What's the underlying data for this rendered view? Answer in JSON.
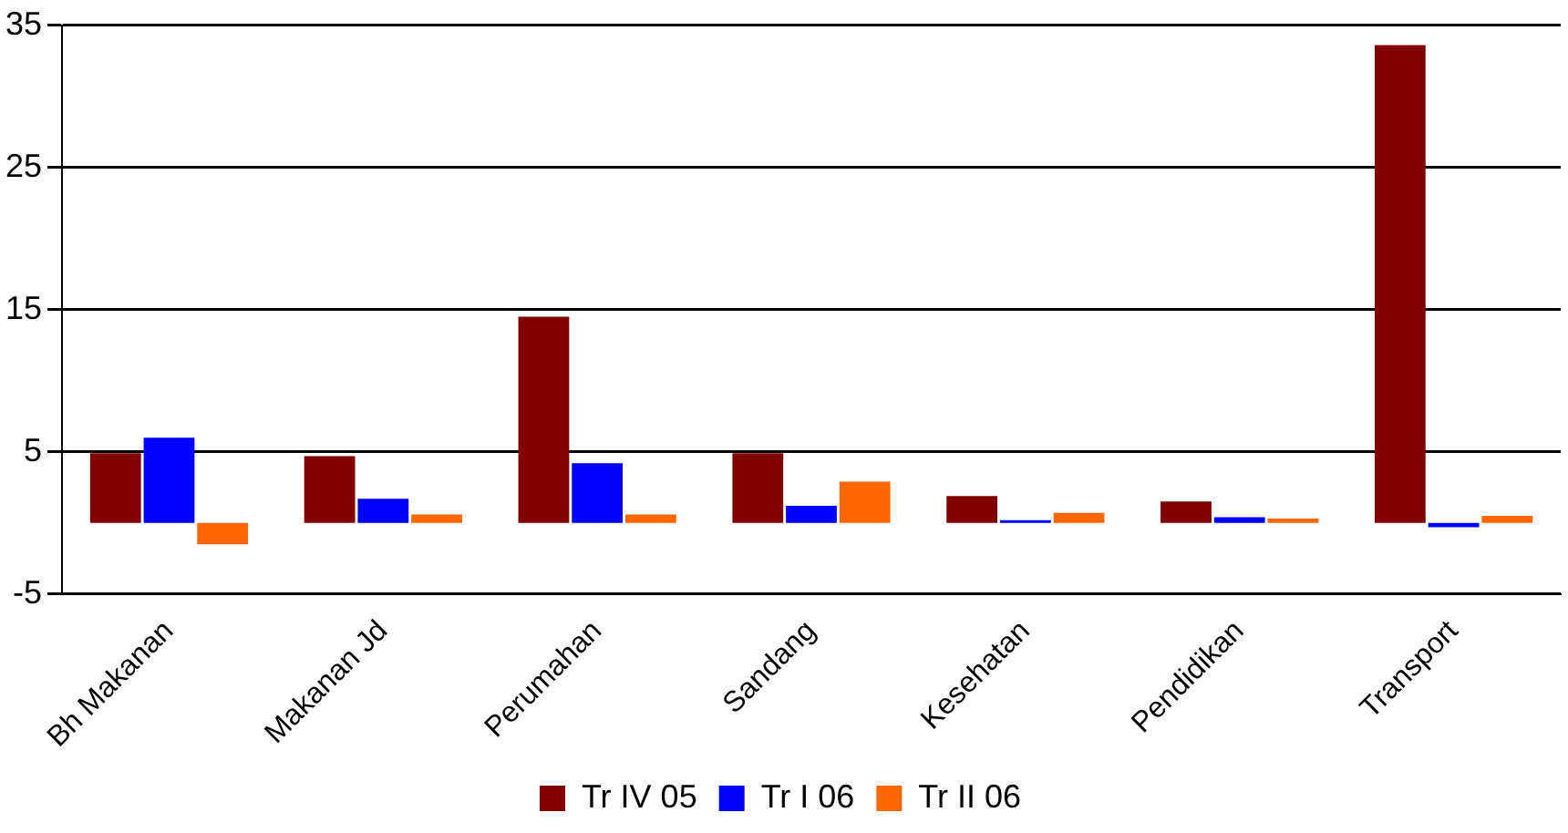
{
  "chart_data": {
    "type": "bar",
    "categories": [
      "Bh Makanan",
      "Makanan Jd",
      "Perumahan",
      "Sandang",
      "Kesehatan",
      "Pendidikan",
      "Transport"
    ],
    "series": [
      {
        "name": "Tr IV 05",
        "color": "#800000",
        "values": [
          4.9,
          4.7,
          14.5,
          4.9,
          1.9,
          1.5,
          33.6
        ]
      },
      {
        "name": "Tr I 06",
        "color": "#0000ff",
        "values": [
          6.0,
          1.7,
          4.2,
          1.2,
          0.2,
          0.4,
          -0.3
        ]
      },
      {
        "name": "Tr II 06",
        "color": "#ff6600",
        "values": [
          -1.5,
          0.6,
          0.6,
          2.9,
          0.7,
          0.3,
          0.5
        ]
      }
    ],
    "ylim": [
      -5,
      35
    ],
    "yticks": [
      -5,
      5,
      15,
      25,
      35
    ],
    "grid": "y",
    "legend": "bottom"
  }
}
